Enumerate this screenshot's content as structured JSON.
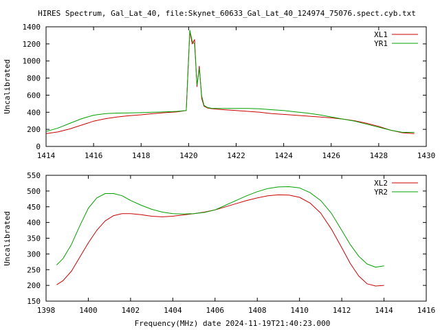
{
  "title": "HIRES Spectrum, Gal_Lat_40, file:Skynet_60633_Gal_Lat_40_124974_75076.spect.cyb.txt",
  "xlabel": "Frequency(MHz) date 2024-11-19T21:40:23.000",
  "colors": {
    "red": "#cc0000",
    "green": "#00a000"
  },
  "chart_data": [
    {
      "type": "line",
      "ylabel": "Uncalibrated",
      "xlim": [
        1414,
        1430
      ],
      "ylim": [
        0,
        1400
      ],
      "xticks": [
        "1414",
        "1416",
        "1418",
        "1420",
        "1422",
        "1424",
        "1426",
        "1428",
        "1430"
      ],
      "yticks": [
        "0",
        "200",
        "400",
        "600",
        "800",
        "1000",
        "1200",
        "1400"
      ],
      "legend": "top-right",
      "series": [
        {
          "name": "XL1",
          "color": "#cc0000",
          "x": [
            1414.0,
            1414.5,
            1415.0,
            1415.5,
            1416.0,
            1416.5,
            1417.0,
            1417.5,
            1418.0,
            1418.5,
            1419.0,
            1419.5,
            1419.9,
            1420.05,
            1420.15,
            1420.25,
            1420.35,
            1420.45,
            1420.55,
            1420.65,
            1420.8,
            1421.0,
            1421.5,
            1422.0,
            1422.5,
            1423.0,
            1423.5,
            1424.0,
            1424.5,
            1425.0,
            1425.5,
            1426.0,
            1426.5,
            1427.0,
            1427.5,
            1428.0,
            1428.5,
            1429.0,
            1429.5
          ],
          "values": [
            150,
            170,
            205,
            250,
            295,
            325,
            345,
            360,
            370,
            385,
            395,
            405,
            420,
            1350,
            1200,
            1250,
            700,
            940,
            560,
            470,
            450,
            440,
            430,
            420,
            410,
            400,
            385,
            375,
            365,
            355,
            345,
            335,
            320,
            300,
            270,
            235,
            190,
            160,
            150
          ]
        },
        {
          "name": "YR1",
          "color": "#00a000",
          "x": [
            1414.0,
            1414.5,
            1415.0,
            1415.5,
            1416.0,
            1416.5,
            1417.0,
            1417.5,
            1418.0,
            1418.5,
            1419.0,
            1419.5,
            1419.9,
            1420.05,
            1420.15,
            1420.25,
            1420.35,
            1420.45,
            1420.55,
            1420.65,
            1420.8,
            1421.0,
            1421.5,
            1422.0,
            1422.5,
            1423.0,
            1423.5,
            1424.0,
            1424.5,
            1425.0,
            1425.5,
            1426.0,
            1426.5,
            1427.0,
            1427.5,
            1428.0,
            1428.5,
            1429.0,
            1429.5
          ],
          "values": [
            175,
            215,
            270,
            325,
            365,
            385,
            390,
            392,
            395,
            400,
            405,
            410,
            420,
            1360,
            1230,
            1200,
            720,
            910,
            590,
            480,
            455,
            445,
            445,
            445,
            445,
            440,
            430,
            420,
            405,
            390,
            370,
            345,
            320,
            295,
            260,
            225,
            190,
            165,
            165
          ]
        }
      ]
    },
    {
      "type": "line",
      "ylabel": "Uncalibrated",
      "xlim": [
        1398,
        1416
      ],
      "ylim": [
        150,
        550
      ],
      "xticks": [
        "1398",
        "1400",
        "1402",
        "1404",
        "1406",
        "1408",
        "1410",
        "1412",
        "1414",
        "1416"
      ],
      "yticks": [
        "150",
        "200",
        "250",
        "300",
        "350",
        "400",
        "450",
        "500",
        "550"
      ],
      "legend": "top-right",
      "series": [
        {
          "name": "XL2",
          "color": "#cc0000",
          "x": [
            1398.5,
            1398.8,
            1399.2,
            1399.6,
            1400.0,
            1400.4,
            1400.8,
            1401.2,
            1401.6,
            1402.0,
            1402.5,
            1403.0,
            1403.5,
            1404.0,
            1404.5,
            1405.0,
            1405.5,
            1406.0,
            1406.5,
            1407.0,
            1407.5,
            1408.0,
            1408.5,
            1409.0,
            1409.5,
            1410.0,
            1410.5,
            1411.0,
            1411.5,
            1412.0,
            1412.4,
            1412.8,
            1413.2,
            1413.6,
            1414.0
          ],
          "values": [
            202,
            215,
            245,
            290,
            335,
            375,
            405,
            422,
            428,
            428,
            425,
            420,
            418,
            420,
            424,
            428,
            433,
            440,
            450,
            460,
            470,
            478,
            485,
            488,
            487,
            480,
            462,
            430,
            380,
            320,
            270,
            230,
            205,
            198,
            200
          ]
        },
        {
          "name": "YR2",
          "color": "#00a000",
          "x": [
            1398.5,
            1398.8,
            1399.2,
            1399.6,
            1400.0,
            1400.4,
            1400.8,
            1401.2,
            1401.6,
            1402.0,
            1402.5,
            1403.0,
            1403.5,
            1404.0,
            1404.5,
            1405.0,
            1405.5,
            1406.0,
            1406.5,
            1407.0,
            1407.5,
            1408.0,
            1408.5,
            1409.0,
            1409.5,
            1410.0,
            1410.5,
            1411.0,
            1411.5,
            1412.0,
            1412.4,
            1412.8,
            1413.2,
            1413.6,
            1414.0
          ],
          "values": [
            265,
            285,
            330,
            390,
            445,
            478,
            492,
            492,
            485,
            470,
            455,
            442,
            433,
            428,
            427,
            428,
            432,
            440,
            455,
            470,
            485,
            498,
            508,
            513,
            514,
            510,
            495,
            470,
            430,
            375,
            330,
            293,
            268,
            258,
            262
          ]
        }
      ]
    }
  ]
}
